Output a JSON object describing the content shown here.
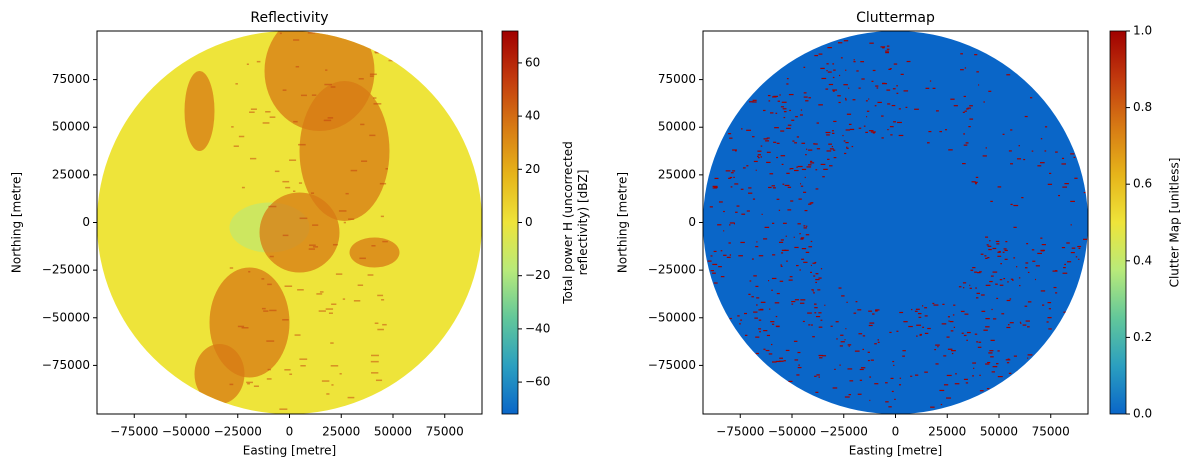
{
  "chart_data": [
    {
      "type": "heatmap",
      "title": "Reflectivity",
      "xlabel": "Easting [metre]",
      "ylabel": "Northing [metre]",
      "xlim": [
        -93000,
        93000
      ],
      "ylim": [
        -100500,
        100500
      ],
      "xticks": [
        {
          "value": -75000,
          "label": "−75000"
        },
        {
          "value": -50000,
          "label": "−50000"
        },
        {
          "value": -25000,
          "label": "−25000"
        },
        0,
        25000,
        50000,
        75000
      ],
      "yticks": [
        {
          "value": -75000,
          "label": "−75000"
        },
        {
          "value": -50000,
          "label": "−50000"
        },
        {
          "value": -25000,
          "label": "−25000"
        },
        0,
        25000,
        50000,
        75000
      ],
      "colorbar": {
        "label": [
          "Total power H (uncorrected",
          "reflectivity) [dBZ]"
        ],
        "lim": [
          -72,
          72
        ],
        "ticks": [
          {
            "value": -60,
            "label": "−60"
          },
          {
            "value": -40,
            "label": "−40"
          },
          {
            "value": -20,
            "label": "−20"
          },
          0,
          20,
          40,
          60
        ],
        "colors": [
          "#0a66c8",
          "#2b9fc0",
          "#62c79a",
          "#b8ea7a",
          "#eee43a",
          "#e6b41a",
          "#d77a14",
          "#c23a0e",
          "#a00000"
        ]
      }
    },
    {
      "type": "heatmap",
      "title": "Cluttermap",
      "xlabel": "Easting [metre]",
      "ylabel": "Northing [metre]",
      "xlim": [
        -93000,
        93000
      ],
      "ylim": [
        -100500,
        100500
      ],
      "xticks": [
        {
          "value": -75000,
          "label": "−75000"
        },
        {
          "value": -50000,
          "label": "−50000"
        },
        {
          "value": -25000,
          "label": "−25000"
        },
        0,
        25000,
        50000,
        75000
      ],
      "yticks": [
        {
          "value": -75000,
          "label": "−75000"
        },
        {
          "value": -50000,
          "label": "−50000"
        },
        {
          "value": -25000,
          "label": "−25000"
        },
        0,
        25000,
        50000,
        75000
      ],
      "colorbar": {
        "label": [
          "Clutter Map [unitless]"
        ],
        "lim": [
          0,
          1
        ],
        "ticks": [
          {
            "value": 0,
            "label": "0.0"
          },
          0.2,
          0.4,
          0.6,
          0.8,
          {
            "value": 1,
            "label": "1.0"
          }
        ],
        "colors": [
          "#0a66c8",
          "#2b9fc0",
          "#62c79a",
          "#b8ea7a",
          "#eee43a",
          "#e6b41a",
          "#d77a14",
          "#c23a0e",
          "#a00000"
        ]
      }
    }
  ]
}
